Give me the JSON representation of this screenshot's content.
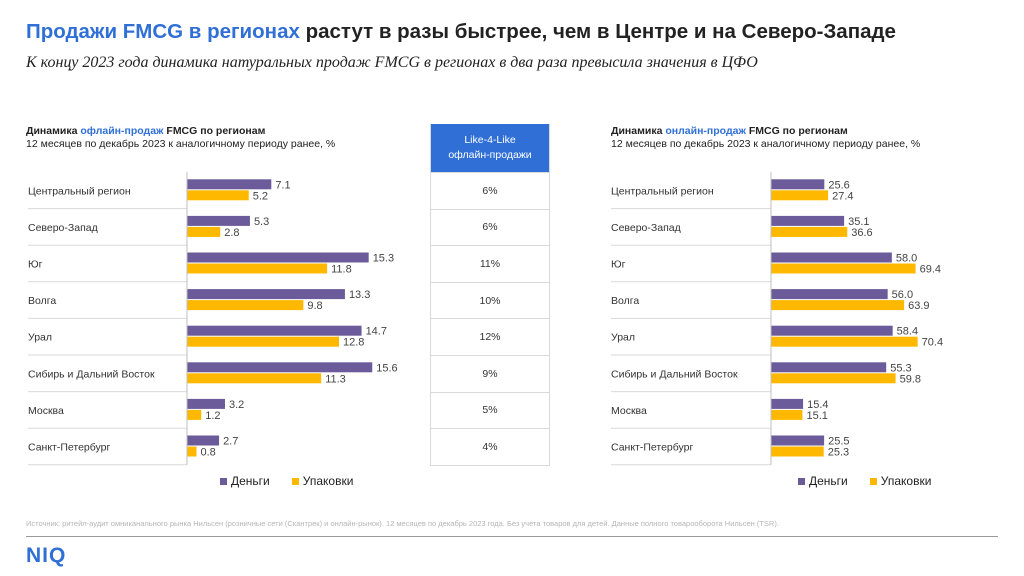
{
  "header": {
    "title_highlight": "Продажи FMCG в регионах",
    "title_rest": " растут в разы быстрее, чем в Центре и на Северо-Западе",
    "subtitle": "К концу 2023 года динамика натуральных продаж FMCG в регионах в два раза превысила значения в ЦФО"
  },
  "left_panel": {
    "title_prefix": "Динамика ",
    "title_highlight": "офлайн-продаж",
    "title_suffix": " FMCG по регионам",
    "subtitle": "12 месяцев по декабрь 2023 к аналогичному периоду ранее, %"
  },
  "right_panel": {
    "title_prefix": "Динамика ",
    "title_highlight": "онлайн-продаж",
    "title_suffix": " FMCG по регионам",
    "subtitle": "12 месяцев по декабрь 2023 к аналогичному периоду ранее, %"
  },
  "like4like": {
    "header_line1": "Like-4-Like",
    "header_line2": "офлайн-продажи",
    "values": [
      "6%",
      "6%",
      "11%",
      "10%",
      "12%",
      "9%",
      "5%",
      "4%"
    ]
  },
  "legend": {
    "money": "Деньги",
    "packs": "Упаковки"
  },
  "colors": {
    "money": "#6b5b9a",
    "packs": "#ffb800",
    "accent": "#2f6fd6"
  },
  "chart_data": [
    {
      "type": "bar",
      "orientation": "horizontal",
      "title": "Динамика офлайн-продаж FMCG по регионам",
      "subtitle": "12 месяцев по декабрь 2023 к аналогичному периоду ранее, %",
      "categories": [
        "Центральный регион",
        "Северо-Запад",
        "Юг",
        "Волга",
        "Урал",
        "Сибирь и Дальний Восток",
        "Москва",
        "Санкт-Петербург"
      ],
      "series": [
        {
          "name": "Деньги",
          "values": [
            7.1,
            5.3,
            15.3,
            13.3,
            14.7,
            15.6,
            3.2,
            2.7
          ]
        },
        {
          "name": "Упаковки",
          "values": [
            5.2,
            2.8,
            11.8,
            9.8,
            12.8,
            11.3,
            1.2,
            0.8
          ]
        }
      ],
      "labels": {
        "Деньги": [
          "7.1",
          "5.3",
          "15.3",
          "13.3",
          "14.7",
          "15.6",
          "3.2",
          "2.7"
        ],
        "Упаковки": [
          "5.2",
          "2.8",
          "11.8",
          "9.8",
          "12.8",
          "11.3",
          "1.2",
          "0.8"
        ]
      },
      "xlim": [
        0,
        16
      ],
      "legend_position": "bottom"
    },
    {
      "type": "bar",
      "orientation": "horizontal",
      "title": "Динамика онлайн-продаж FMCG по регионам",
      "subtitle": "12 месяцев по декабрь 2023 к аналогичному периоду ранее, %",
      "categories": [
        "Центральный регион",
        "Северо-Запад",
        "Юг",
        "Волга",
        "Урал",
        "Сибирь и Дальний Восток",
        "Москва",
        "Санкт-Петербург"
      ],
      "series": [
        {
          "name": "Деньги",
          "values": [
            25.6,
            35.1,
            58.0,
            56.0,
            58.4,
            55.3,
            15.4,
            25.5
          ]
        },
        {
          "name": "Упаковки",
          "values": [
            27.4,
            36.6,
            69.4,
            63.9,
            70.4,
            59.8,
            15.1,
            25.3
          ]
        }
      ],
      "labels": {
        "Деньги": [
          "25.6",
          "35.1",
          "58.0",
          "56.0",
          "58.4",
          "55.3",
          "15.4",
          "25.5"
        ],
        "Упаковки": [
          "27.4",
          "36.6",
          "69.4",
          "63.9",
          "70.4",
          "59.8",
          "15.1",
          "25.3"
        ]
      },
      "xlim": [
        0,
        72
      ],
      "legend_position": "bottom"
    }
  ],
  "footer": {
    "source": "Источник: ритейл-аудит омниканального рынка Нильсен (розничные сети (Скантрек) и онлайн-рынок). 12 месяцев по декабрь 2023 года. Без учета товаров для детей. Данные полного товарооборота Нильсен (TSR).",
    "logo": "NIQ"
  }
}
